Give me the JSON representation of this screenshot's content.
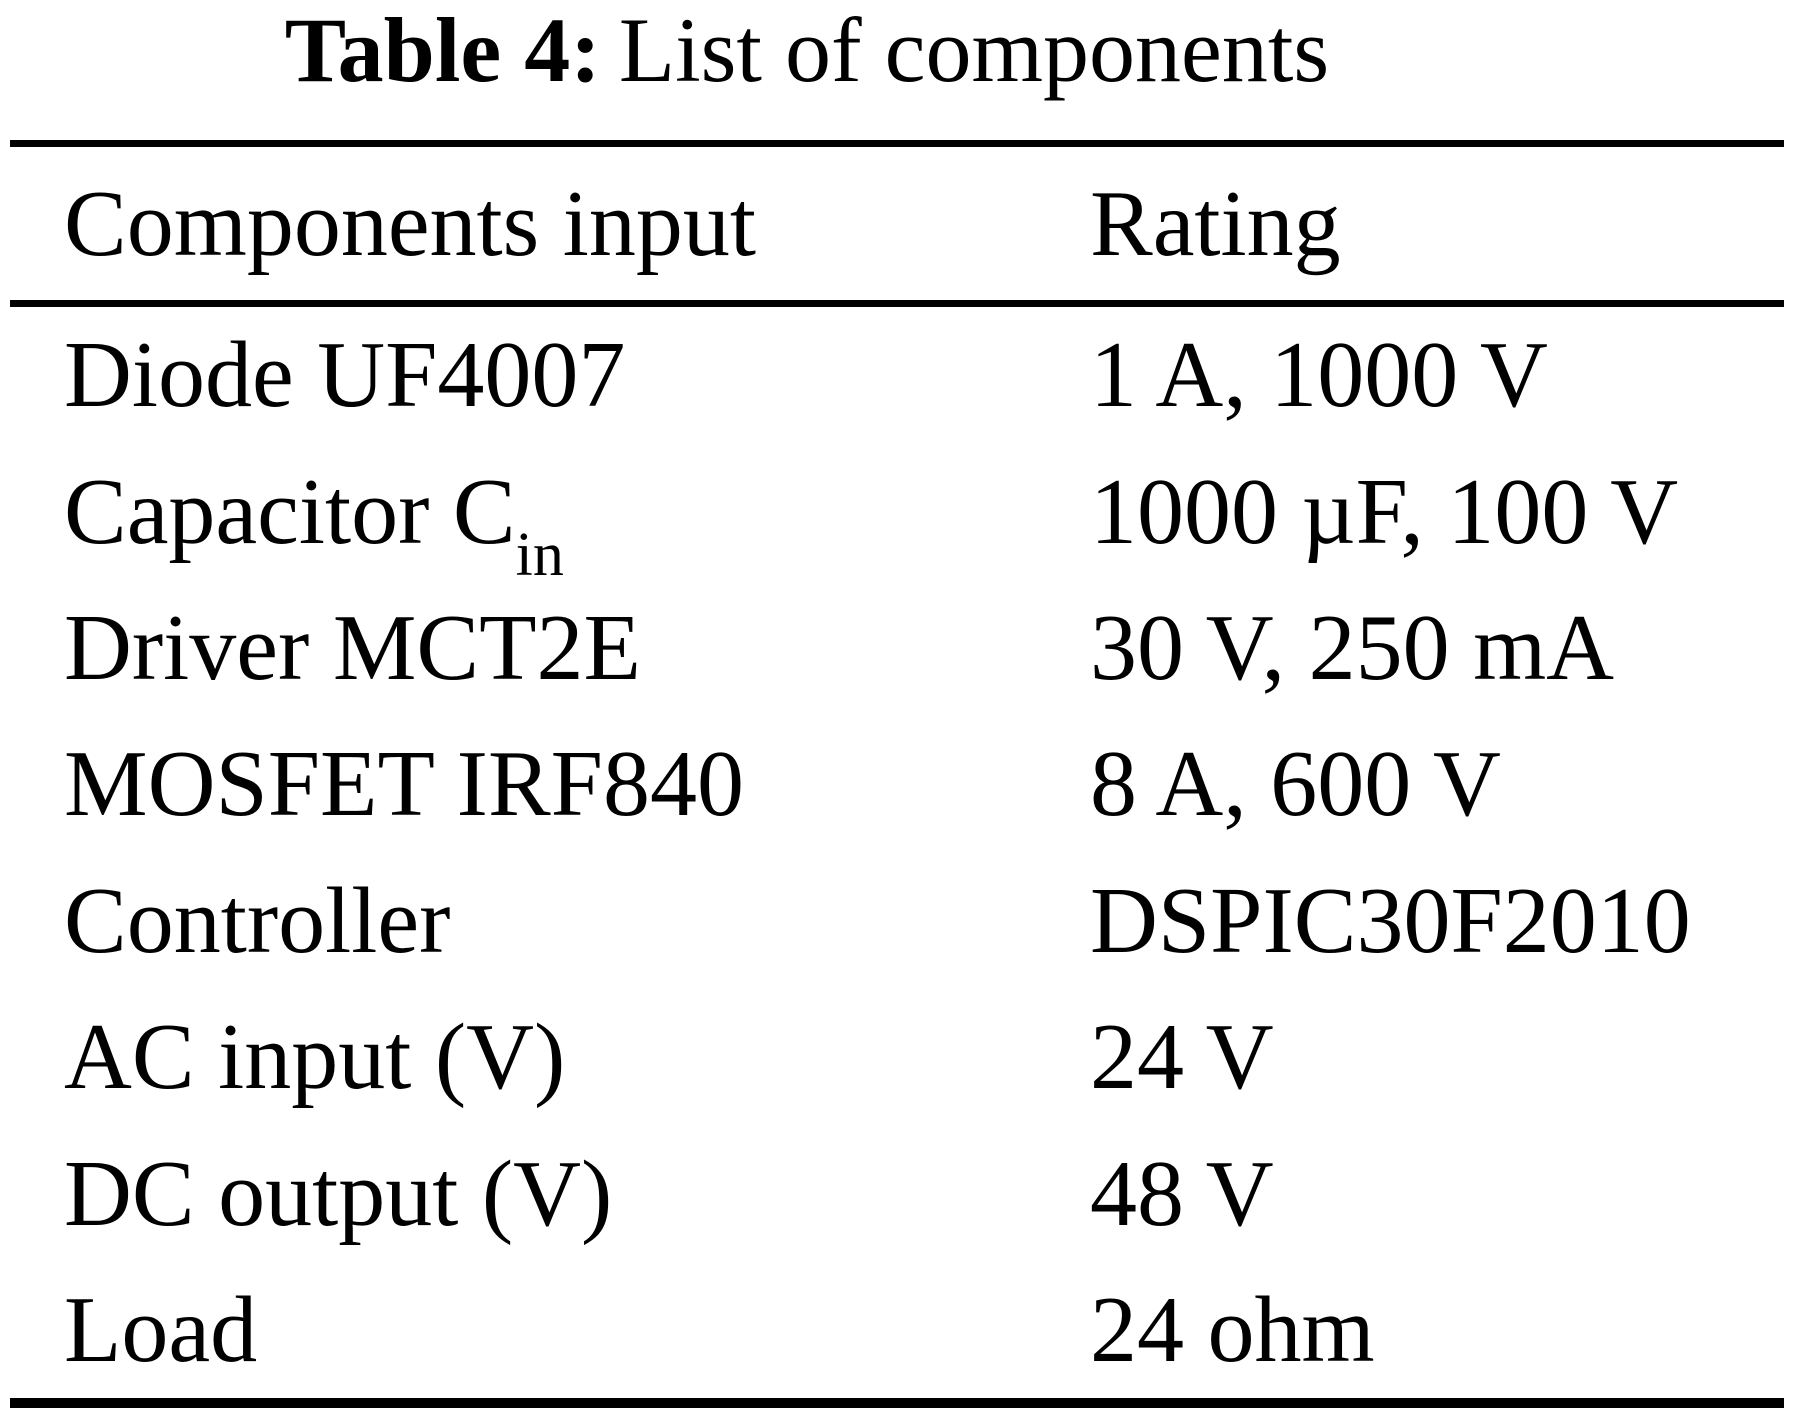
{
  "caption": {
    "label": "Table 4:",
    "text": "List of components"
  },
  "table": {
    "columns": [
      "Components input",
      "Rating"
    ],
    "rows": [
      {
        "name": "Diode UF4007",
        "sub": "",
        "rating": "1 A, 1000 V"
      },
      {
        "name": "Capacitor C",
        "sub": "in",
        "rating": "1000 µF, 100 V"
      },
      {
        "name": "Driver MCT2E",
        "sub": "",
        "rating": "30 V, 250 mA"
      },
      {
        "name": "MOSFET IRF840",
        "sub": "",
        "rating": "8 A, 600 V"
      },
      {
        "name": "Controller",
        "sub": "",
        "rating": "DSPIC30F2010"
      },
      {
        "name": "AC input (V)",
        "sub": "",
        "rating": "24 V"
      },
      {
        "name": "DC output (V)",
        "sub": "",
        "rating": "48 V"
      },
      {
        "name": "Load",
        "sub": "",
        "rating": "24 ohm"
      }
    ]
  },
  "colors": {
    "background": "#ffffff",
    "text": "#000000",
    "rule": "#000000"
  }
}
